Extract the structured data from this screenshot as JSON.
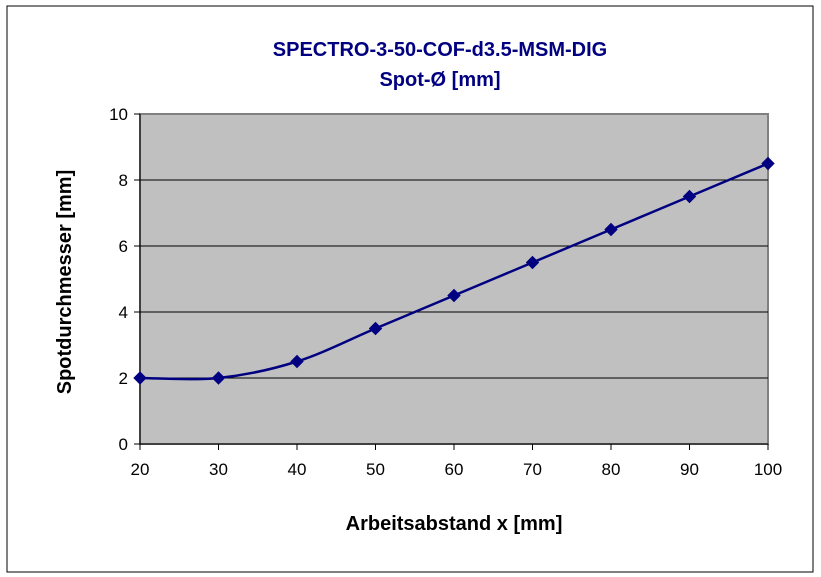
{
  "chart_data": {
    "type": "line",
    "title": "SPECTRO-3-50-COF-d3.5-MSM-DIG",
    "subtitle": "Spot-Ø [mm]",
    "xlabel": "Arbeitsabstand x [mm]",
    "ylabel": "Spotdurchmesser [mm]",
    "xlim": [
      20,
      100
    ],
    "ylim": [
      0,
      10
    ],
    "x_ticks": [
      "20",
      "30",
      "40",
      "50",
      "60",
      "70",
      "80",
      "90",
      "100"
    ],
    "y_ticks": [
      "0",
      "2",
      "4",
      "6",
      "8",
      "10"
    ],
    "grid": "horizontal",
    "legend": "none",
    "smooth": true,
    "series": [
      {
        "x": [
          20,
          30,
          40,
          50,
          60,
          70,
          80,
          90,
          100
        ],
        "values": [
          2.0,
          2.0,
          2.5,
          3.5,
          4.5,
          5.5,
          6.5,
          7.5,
          8.5
        ],
        "color": "#000080",
        "marker": "diamond"
      }
    ],
    "plot_background": "#c0c0c0",
    "frame_color": "#808080"
  }
}
